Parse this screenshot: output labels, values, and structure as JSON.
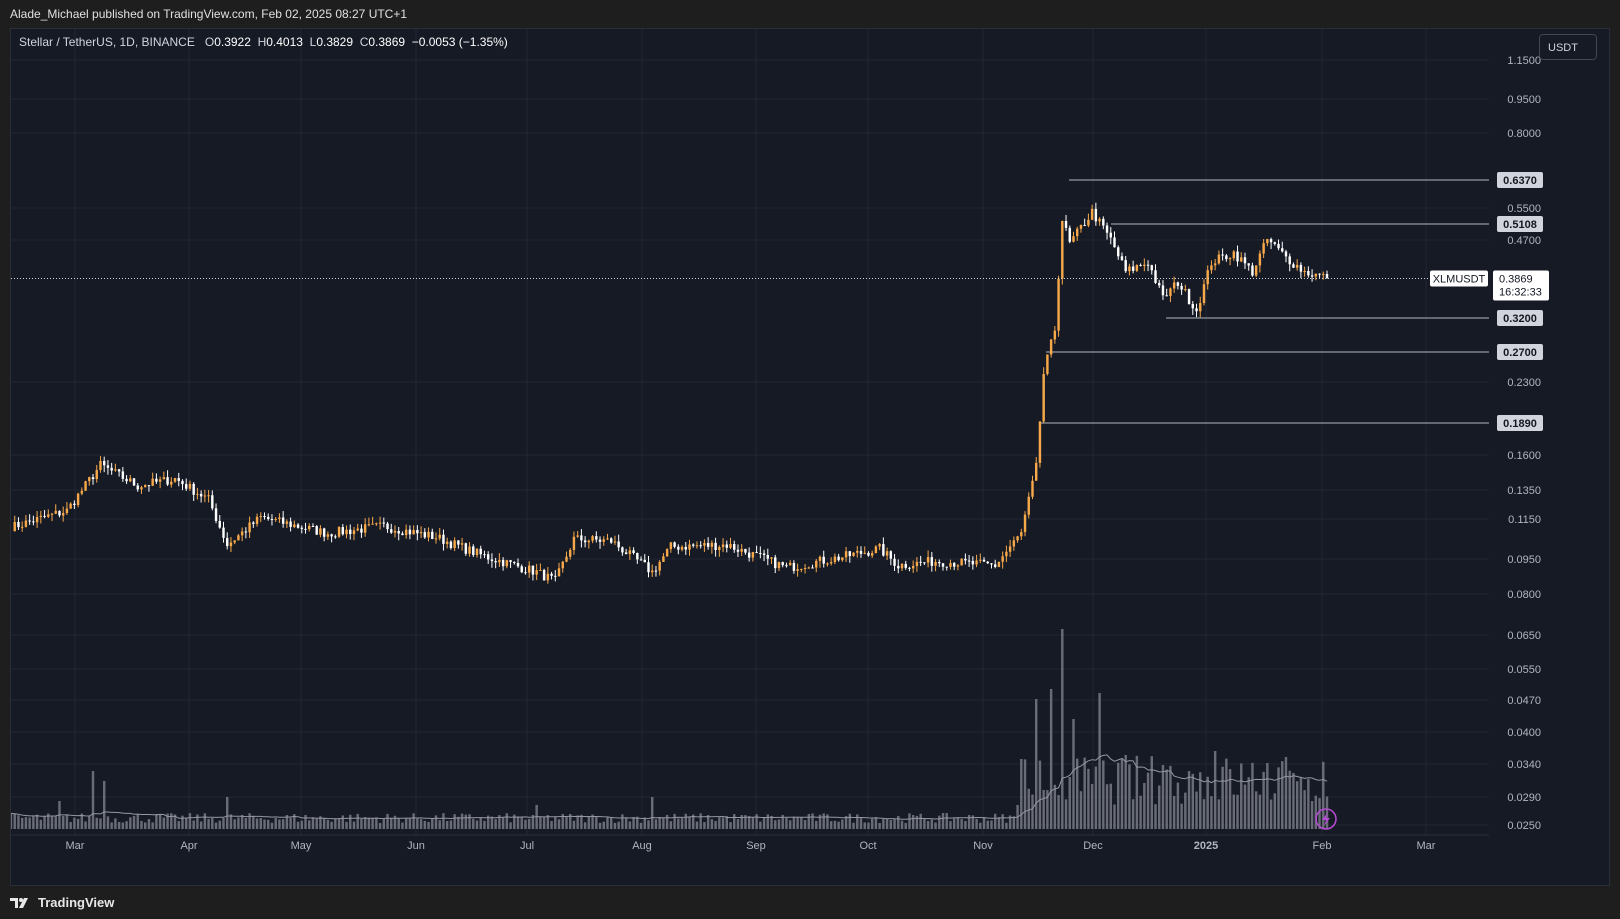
{
  "header": {
    "publish_line": "Alade_Michael published on TradingView.com, Feb 02, 2025 08:27 UTC+1"
  },
  "legend": {
    "symbol": "Stellar / TetherUS, 1D, BINANCE",
    "o_label": "O",
    "o_value": "0.3922",
    "h_label": "H",
    "h_value": "0.4013",
    "l_label": "L",
    "l_value": "0.3829",
    "c_label": "C",
    "c_value": "0.3869",
    "change": "−0.0053 (−1.35%)"
  },
  "currency_button": "USDT",
  "footer": {
    "brand": "TradingView",
    "logo_icon": "tradingview-logo-icon"
  },
  "colors": {
    "background": "#161a25",
    "up": "#f7a94a",
    "down": "#ffffff",
    "grid": "#232734",
    "level_line": "#b2b5be",
    "volume": "#787b86",
    "volume_ma": "#9598a1"
  },
  "price_tag": {
    "symbol": "XLMUSDT",
    "price": "0.3869",
    "countdown": "16:32:33"
  },
  "chart_data": {
    "type": "candlestick",
    "scale": "log",
    "interval": "1D",
    "x_axis_labels": [
      "Mar",
      "Apr",
      "May",
      "Jun",
      "Jul",
      "Aug",
      "Sep",
      "Oct",
      "Nov",
      "Dec",
      "2025",
      "Feb",
      "Mar"
    ],
    "y_axis_labels": [
      "1.1500",
      "0.9500",
      "0.8000",
      "0.5500",
      "0.4700",
      "0.2300",
      "0.1600",
      "0.1350",
      "0.1150",
      "0.0950",
      "0.0800",
      "0.0650",
      "0.0550",
      "0.0470",
      "0.0400",
      "0.0340",
      "0.0290",
      "0.0250"
    ],
    "horizontal_levels": [
      "0.6370",
      "0.5108",
      "0.3200",
      "0.2700",
      "0.1890"
    ],
    "last_price": 0.3869,
    "ylim": [
      0.025,
      1.15
    ],
    "close_anchors": [
      {
        "date": "2024-02-16",
        "close": 0.112
      },
      {
        "date": "2024-03-01",
        "close": 0.121
      },
      {
        "date": "2024-03-10",
        "close": 0.152
      },
      {
        "date": "2024-03-20",
        "close": 0.137
      },
      {
        "date": "2024-03-30",
        "close": 0.142
      },
      {
        "date": "2024-04-08",
        "close": 0.128
      },
      {
        "date": "2024-04-13",
        "close": 0.102
      },
      {
        "date": "2024-04-22",
        "close": 0.117
      },
      {
        "date": "2024-05-10",
        "close": 0.108
      },
      {
        "date": "2024-05-25",
        "close": 0.112
      },
      {
        "date": "2024-06-08",
        "close": 0.106
      },
      {
        "date": "2024-06-20",
        "close": 0.097
      },
      {
        "date": "2024-07-05",
        "close": 0.089
      },
      {
        "date": "2024-07-10",
        "close": 0.085
      },
      {
        "date": "2024-07-15",
        "close": 0.105
      },
      {
        "date": "2024-07-25",
        "close": 0.104
      },
      {
        "date": "2024-08-05",
        "close": 0.089
      },
      {
        "date": "2024-08-10",
        "close": 0.101
      },
      {
        "date": "2024-08-25",
        "close": 0.102
      },
      {
        "date": "2024-09-10",
        "close": 0.091
      },
      {
        "date": "2024-09-25",
        "close": 0.096
      },
      {
        "date": "2024-10-05",
        "close": 0.1
      },
      {
        "date": "2024-10-10",
        "close": 0.092
      },
      {
        "date": "2024-10-20",
        "close": 0.094
      },
      {
        "date": "2024-11-05",
        "close": 0.092
      },
      {
        "date": "2024-11-12",
        "close": 0.108
      },
      {
        "date": "2024-11-16",
        "close": 0.15
      },
      {
        "date": "2024-11-18",
        "close": 0.24
      },
      {
        "date": "2024-11-21",
        "close": 0.3
      },
      {
        "date": "2024-11-23",
        "close": 0.52
      },
      {
        "date": "2024-11-25",
        "close": 0.46
      },
      {
        "date": "2024-12-01",
        "close": 0.54
      },
      {
        "date": "2024-12-06",
        "close": 0.47
      },
      {
        "date": "2024-12-10",
        "close": 0.4
      },
      {
        "date": "2024-12-16",
        "close": 0.42
      },
      {
        "date": "2024-12-20",
        "close": 0.35
      },
      {
        "date": "2024-12-24",
        "close": 0.38
      },
      {
        "date": "2024-12-29",
        "close": 0.33
      },
      {
        "date": "2025-01-02",
        "close": 0.42
      },
      {
        "date": "2025-01-08",
        "close": 0.44
      },
      {
        "date": "2025-01-13",
        "close": 0.4
      },
      {
        "date": "2025-01-17",
        "close": 0.47
      },
      {
        "date": "2025-01-22",
        "close": 0.43
      },
      {
        "date": "2025-01-27",
        "close": 0.4
      },
      {
        "date": "2025-01-31",
        "close": 0.392
      },
      {
        "date": "2025-02-02",
        "close": 0.3869
      }
    ],
    "volume_spikes": [
      {
        "date": "2024-02-28",
        "rel": 0.14
      },
      {
        "date": "2024-03-08",
        "rel": 0.29
      },
      {
        "date": "2024-03-11",
        "rel": 0.24
      },
      {
        "date": "2024-04-13",
        "rel": 0.16
      },
      {
        "date": "2024-07-05",
        "rel": 0.12
      },
      {
        "date": "2024-08-05",
        "rel": 0.16
      },
      {
        "date": "2024-11-12",
        "rel": 0.35
      },
      {
        "date": "2024-11-16",
        "rel": 0.65
      },
      {
        "date": "2024-11-20",
        "rel": 0.7
      },
      {
        "date": "2024-11-23",
        "rel": 1.0
      },
      {
        "date": "2024-11-26",
        "rel": 0.55
      },
      {
        "date": "2024-12-03",
        "rel": 0.68
      },
      {
        "date": "2024-12-10",
        "rel": 0.37
      },
      {
        "date": "2024-12-20",
        "rel": 0.32
      },
      {
        "date": "2025-01-03",
        "rel": 0.39
      },
      {
        "date": "2025-01-17",
        "rel": 0.33
      },
      {
        "date": "2025-01-26",
        "rel": 0.26
      }
    ]
  }
}
